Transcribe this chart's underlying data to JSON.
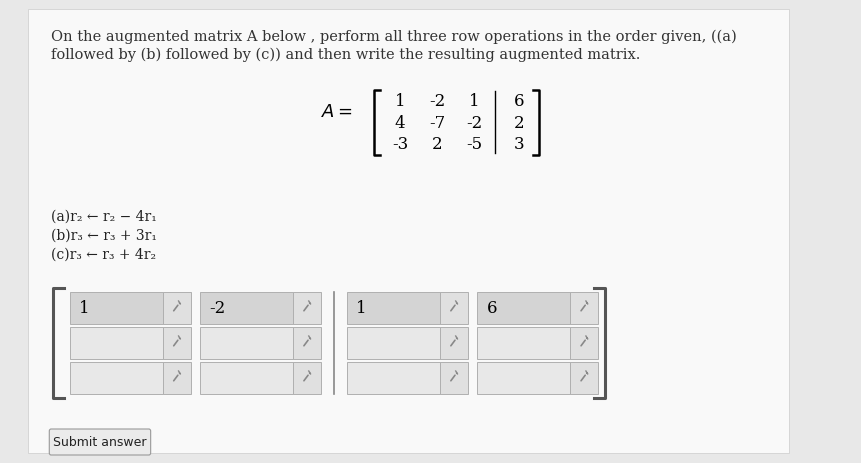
{
  "bg_color": "#e8e8e8",
  "page_bg": "#f5f5f5",
  "title_line1": "On the augmented matrix A below , perform all three row operations in the order given, ((a)",
  "title_line2": "followed by (b) followed by (c)) and then write the resulting augmented matrix.",
  "matrix_label": "A =",
  "matrix": [
    [
      1,
      -2,
      1,
      6
    ],
    [
      4,
      -7,
      -2,
      2
    ],
    [
      -3,
      2,
      -5,
      3
    ]
  ],
  "ops": [
    "(a)r₂ ← r₂ − 4r₁",
    "(b)r₃ ← r₃ + 3r₁",
    "(c)r₃ ← r₃ + 4r₂"
  ],
  "submit_label": "Submit answer",
  "ans_col0_vals": [
    "1",
    "",
    ""
  ],
  "ans_col1_vals": [
    "-2",
    "",
    ""
  ],
  "ans_col2_vals": [
    "1",
    "",
    ""
  ],
  "ans_col3_vals": [
    "6",
    "",
    ""
  ]
}
